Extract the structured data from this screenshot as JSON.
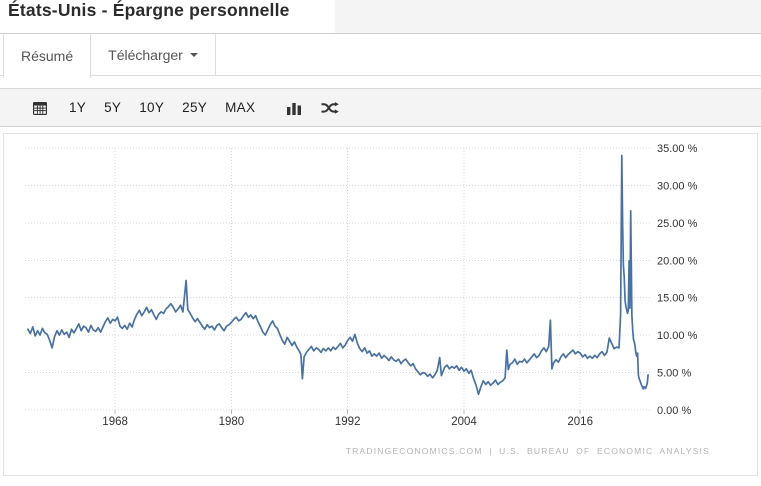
{
  "header": {
    "title": "États-Unis - Épargne personnelle"
  },
  "tabs": {
    "resume": "Résumé",
    "telecharger": "Télécharger"
  },
  "toolbar": {
    "ranges": [
      "1Y",
      "5Y",
      "10Y",
      "25Y",
      "MAX"
    ],
    "icons": {
      "calendar": "calendar-icon",
      "chart_type": "bar-chart-icon",
      "compare": "shuffle-icon",
      "caret": "chevron-down-icon"
    }
  },
  "colors": {
    "line": "#4572a7",
    "grid": "#d8d8d8",
    "axis_text": "#333333",
    "attribution_text": "#b3b3b3",
    "toolbar_bg": "#f4f4f4"
  },
  "chart_data": {
    "type": "line",
    "title": "États-Unis - Épargne personnelle",
    "xlabel": "",
    "ylabel": "",
    "xlim": [
      1958.7,
      2023.2
    ],
    "ylim": [
      0,
      35
    ],
    "x_ticks": [
      1968,
      1980,
      1992,
      2004,
      2016
    ],
    "y_ticks": [
      0,
      5,
      10,
      15,
      20,
      25,
      30,
      35
    ],
    "y_tick_labels": [
      "0.00 %",
      "5.00 %",
      "10.00 %",
      "15.00 %",
      "20.00 %",
      "25.00 %",
      "30.00 %",
      "35.00 %"
    ],
    "grid": true,
    "legend": "none",
    "line_color": "#4572a7",
    "attribution": "TRADINGECONOMICS.COM | U.S. BUREAU OF ECONOMIC ANALYSIS",
    "series": [
      {
        "name": "Épargne personnelle (%)",
        "points": [
          [
            1959.0,
            10.8
          ],
          [
            1959.25,
            10.2
          ],
          [
            1959.5,
            11.1
          ],
          [
            1959.75,
            9.9
          ],
          [
            1960.0,
            10.6
          ],
          [
            1960.25,
            10.0
          ],
          [
            1960.5,
            10.9
          ],
          [
            1960.75,
            10.3
          ],
          [
            1961.0,
            10.1
          ],
          [
            1961.25,
            9.3
          ],
          [
            1961.5,
            8.3
          ],
          [
            1961.75,
            9.8
          ],
          [
            1962.0,
            10.6
          ],
          [
            1962.25,
            10.0
          ],
          [
            1962.5,
            10.7
          ],
          [
            1962.75,
            10.1
          ],
          [
            1963.0,
            10.4
          ],
          [
            1963.25,
            9.7
          ],
          [
            1963.5,
            10.8
          ],
          [
            1963.75,
            10.3
          ],
          [
            1964.0,
            10.9
          ],
          [
            1964.25,
            11.5
          ],
          [
            1964.5,
            10.6
          ],
          [
            1964.75,
            11.2
          ],
          [
            1965.0,
            11.0
          ],
          [
            1965.25,
            10.4
          ],
          [
            1965.5,
            11.3
          ],
          [
            1965.75,
            10.7
          ],
          [
            1966.0,
            10.5
          ],
          [
            1966.25,
            11.0
          ],
          [
            1966.5,
            10.4
          ],
          [
            1966.75,
            11.1
          ],
          [
            1967.0,
            11.8
          ],
          [
            1967.25,
            12.3
          ],
          [
            1967.5,
            11.6
          ],
          [
            1967.75,
            12.1
          ],
          [
            1968.0,
            11.9
          ],
          [
            1968.25,
            12.4
          ],
          [
            1968.5,
            11.2
          ],
          [
            1968.75,
            10.9
          ],
          [
            1969.0,
            11.3
          ],
          [
            1969.25,
            10.8
          ],
          [
            1969.5,
            11.6
          ],
          [
            1969.75,
            11.1
          ],
          [
            1970.0,
            12.1
          ],
          [
            1970.25,
            12.8
          ],
          [
            1970.5,
            13.3
          ],
          [
            1970.75,
            12.6
          ],
          [
            1971.0,
            13.1
          ],
          [
            1971.25,
            13.7
          ],
          [
            1971.5,
            13.0
          ],
          [
            1971.75,
            13.4
          ],
          [
            1972.0,
            12.7
          ],
          [
            1972.25,
            12.1
          ],
          [
            1972.5,
            12.8
          ],
          [
            1972.75,
            13.1
          ],
          [
            1973.0,
            12.9
          ],
          [
            1973.25,
            13.5
          ],
          [
            1973.5,
            13.8
          ],
          [
            1973.75,
            14.2
          ],
          [
            1974.0,
            13.7
          ],
          [
            1974.25,
            13.1
          ],
          [
            1974.5,
            13.5
          ],
          [
            1974.75,
            14.0
          ],
          [
            1975.0,
            13.1
          ],
          [
            1975.33,
            17.3
          ],
          [
            1975.5,
            13.4
          ],
          [
            1975.75,
            12.9
          ],
          [
            1976.0,
            12.3
          ],
          [
            1976.25,
            11.8
          ],
          [
            1976.5,
            12.2
          ],
          [
            1976.75,
            11.7
          ],
          [
            1977.0,
            11.2
          ],
          [
            1977.25,
            10.8
          ],
          [
            1977.5,
            11.4
          ],
          [
            1977.75,
            11.0
          ],
          [
            1978.0,
            11.2
          ],
          [
            1978.25,
            10.7
          ],
          [
            1978.5,
            11.3
          ],
          [
            1978.75,
            11.5
          ],
          [
            1979.0,
            11.0
          ],
          [
            1979.25,
            10.6
          ],
          [
            1979.5,
            11.2
          ],
          [
            1979.75,
            11.4
          ],
          [
            1980.0,
            11.7
          ],
          [
            1980.25,
            12.1
          ],
          [
            1980.5,
            12.4
          ],
          [
            1980.75,
            11.9
          ],
          [
            1981.0,
            12.1
          ],
          [
            1981.25,
            12.6
          ],
          [
            1981.5,
            13.0
          ],
          [
            1981.75,
            12.4
          ],
          [
            1982.0,
            12.7
          ],
          [
            1982.25,
            12.2
          ],
          [
            1982.5,
            12.6
          ],
          [
            1982.75,
            11.8
          ],
          [
            1983.0,
            11.1
          ],
          [
            1983.25,
            10.4
          ],
          [
            1983.5,
            10.0
          ],
          [
            1983.75,
            10.7
          ],
          [
            1984.0,
            11.4
          ],
          [
            1984.25,
            11.9
          ],
          [
            1984.5,
            11.2
          ],
          [
            1984.75,
            10.9
          ],
          [
            1985.0,
            10.1
          ],
          [
            1985.25,
            9.3
          ],
          [
            1985.5,
            8.8
          ],
          [
            1985.75,
            9.7
          ],
          [
            1986.0,
            9.2
          ],
          [
            1986.25,
            8.6
          ],
          [
            1986.5,
            9.1
          ],
          [
            1986.75,
            8.4
          ],
          [
            1987.0,
            7.9
          ],
          [
            1987.17,
            7.4
          ],
          [
            1987.33,
            4.2
          ],
          [
            1987.5,
            7.1
          ],
          [
            1987.75,
            7.7
          ],
          [
            1988.0,
            8.1
          ],
          [
            1988.25,
            8.5
          ],
          [
            1988.5,
            7.9
          ],
          [
            1988.75,
            8.3
          ],
          [
            1989.0,
            8.1
          ],
          [
            1989.25,
            7.7
          ],
          [
            1989.5,
            8.2
          ],
          [
            1989.75,
            7.9
          ],
          [
            1990.0,
            8.3
          ],
          [
            1990.25,
            7.9
          ],
          [
            1990.5,
            8.4
          ],
          [
            1990.75,
            8.1
          ],
          [
            1991.0,
            8.5
          ],
          [
            1991.25,
            8.9
          ],
          [
            1991.5,
            8.3
          ],
          [
            1991.75,
            8.7
          ],
          [
            1992.0,
            9.3
          ],
          [
            1992.25,
            9.7
          ],
          [
            1992.5,
            9.2
          ],
          [
            1992.75,
            10.1
          ],
          [
            1993.0,
            8.9
          ],
          [
            1993.25,
            8.2
          ],
          [
            1993.5,
            7.8
          ],
          [
            1993.75,
            8.3
          ],
          [
            1994.0,
            7.6
          ],
          [
            1994.25,
            7.9
          ],
          [
            1994.5,
            7.2
          ],
          [
            1994.75,
            7.5
          ],
          [
            1995.0,
            7.2
          ],
          [
            1995.25,
            7.6
          ],
          [
            1995.5,
            6.9
          ],
          [
            1995.75,
            7.3
          ],
          [
            1996.0,
            7.0
          ],
          [
            1996.25,
            6.6
          ],
          [
            1996.5,
            7.1
          ],
          [
            1996.75,
            6.7
          ],
          [
            1997.0,
            6.5
          ],
          [
            1997.25,
            6.8
          ],
          [
            1997.5,
            6.2
          ],
          [
            1997.75,
            6.6
          ],
          [
            1998.0,
            6.8
          ],
          [
            1998.25,
            6.3
          ],
          [
            1998.5,
            5.9
          ],
          [
            1998.75,
            6.2
          ],
          [
            1999.0,
            5.5
          ],
          [
            1999.25,
            5.1
          ],
          [
            1999.5,
            4.7
          ],
          [
            1999.75,
            5.0
          ],
          [
            2000.0,
            4.9
          ],
          [
            2000.25,
            4.5
          ],
          [
            2000.5,
            4.8
          ],
          [
            2000.75,
            4.3
          ],
          [
            2001.0,
            4.7
          ],
          [
            2001.25,
            5.3
          ],
          [
            2001.5,
            7.0
          ],
          [
            2001.67,
            4.6
          ],
          [
            2001.83,
            5.1
          ],
          [
            2002.0,
            5.7
          ],
          [
            2002.25,
            6.0
          ],
          [
            2002.5,
            5.5
          ],
          [
            2002.75,
            5.8
          ],
          [
            2003.0,
            5.6
          ],
          [
            2003.25,
            5.9
          ],
          [
            2003.5,
            5.3
          ],
          [
            2003.75,
            5.7
          ],
          [
            2004.0,
            5.2
          ],
          [
            2004.25,
            5.5
          ],
          [
            2004.5,
            4.9
          ],
          [
            2004.75,
            5.3
          ],
          [
            2005.0,
            4.2
          ],
          [
            2005.25,
            3.3
          ],
          [
            2005.5,
            2.1
          ],
          [
            2005.75,
            3.1
          ],
          [
            2006.0,
            3.9
          ],
          [
            2006.25,
            3.4
          ],
          [
            2006.5,
            3.8
          ],
          [
            2006.75,
            3.3
          ],
          [
            2007.0,
            3.6
          ],
          [
            2007.25,
            4.0
          ],
          [
            2007.5,
            3.4
          ],
          [
            2007.75,
            3.7
          ],
          [
            2008.0,
            3.9
          ],
          [
            2008.25,
            4.3
          ],
          [
            2008.42,
            8.0
          ],
          [
            2008.58,
            5.4
          ],
          [
            2008.75,
            6.1
          ],
          [
            2009.0,
            6.3
          ],
          [
            2009.25,
            6.8
          ],
          [
            2009.5,
            6.1
          ],
          [
            2009.75,
            6.5
          ],
          [
            2010.0,
            6.4
          ],
          [
            2010.25,
            6.8
          ],
          [
            2010.5,
            6.3
          ],
          [
            2010.75,
            6.7
          ],
          [
            2011.0,
            7.1
          ],
          [
            2011.25,
            7.5
          ],
          [
            2011.5,
            7.0
          ],
          [
            2011.75,
            7.3
          ],
          [
            2012.0,
            7.9
          ],
          [
            2012.25,
            8.3
          ],
          [
            2012.5,
            7.8
          ],
          [
            2012.75,
            8.5
          ],
          [
            2012.92,
            12.0
          ],
          [
            2013.08,
            5.5
          ],
          [
            2013.25,
            6.3
          ],
          [
            2013.5,
            6.7
          ],
          [
            2013.75,
            6.4
          ],
          [
            2014.0,
            7.1
          ],
          [
            2014.25,
            7.5
          ],
          [
            2014.5,
            7.0
          ],
          [
            2014.75,
            7.4
          ],
          [
            2015.0,
            7.7
          ],
          [
            2015.25,
            8.0
          ],
          [
            2015.5,
            7.5
          ],
          [
            2015.75,
            7.8
          ],
          [
            2016.0,
            7.6
          ],
          [
            2016.25,
            7.1
          ],
          [
            2016.5,
            7.4
          ],
          [
            2016.75,
            6.9
          ],
          [
            2017.0,
            7.2
          ],
          [
            2017.25,
            6.9
          ],
          [
            2017.5,
            7.3
          ],
          [
            2017.75,
            7.0
          ],
          [
            2018.0,
            7.5
          ],
          [
            2018.25,
            7.8
          ],
          [
            2018.5,
            7.3
          ],
          [
            2018.75,
            7.7
          ],
          [
            2019.0,
            9.6
          ],
          [
            2019.25,
            8.9
          ],
          [
            2019.5,
            8.2
          ],
          [
            2019.75,
            8.4
          ],
          [
            2020.0,
            8.3
          ],
          [
            2020.17,
            12.7
          ],
          [
            2020.29,
            34.0
          ],
          [
            2020.38,
            24.3
          ],
          [
            2020.46,
            19.3
          ],
          [
            2020.54,
            17.8
          ],
          [
            2020.63,
            14.6
          ],
          [
            2020.71,
            13.8
          ],
          [
            2020.79,
            13.4
          ],
          [
            2020.88,
            12.9
          ],
          [
            2020.96,
            13.3
          ],
          [
            2021.04,
            19.9
          ],
          [
            2021.13,
            13.6
          ],
          [
            2021.21,
            26.6
          ],
          [
            2021.33,
            12.6
          ],
          [
            2021.42,
            10.5
          ],
          [
            2021.5,
            9.4
          ],
          [
            2021.58,
            9.1
          ],
          [
            2021.67,
            8.4
          ],
          [
            2021.75,
            7.6
          ],
          [
            2021.83,
            7.2
          ],
          [
            2021.92,
            7.6
          ],
          [
            2022.0,
            4.6
          ],
          [
            2022.08,
            4.2
          ],
          [
            2022.17,
            3.9
          ],
          [
            2022.25,
            3.6
          ],
          [
            2022.33,
            3.3
          ],
          [
            2022.42,
            3.1
          ],
          [
            2022.5,
            2.8
          ],
          [
            2022.58,
            3.1
          ],
          [
            2022.67,
            3.0
          ],
          [
            2022.75,
            2.9
          ],
          [
            2022.83,
            3.2
          ],
          [
            2022.92,
            3.6
          ],
          [
            2023.0,
            4.7
          ]
        ]
      }
    ]
  }
}
